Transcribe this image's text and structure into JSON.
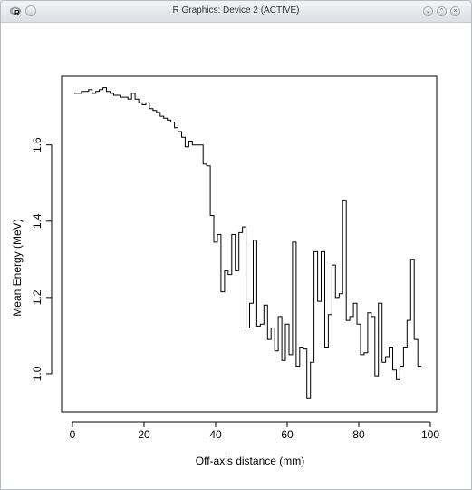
{
  "window": {
    "title": "R Graphics: Device 2 (ACTIVE)"
  },
  "chart_data": {
    "type": "line",
    "xlabel": "Off-axis distance (mm)",
    "ylabel": "Mean Energy (MeV)",
    "xlim": [
      0,
      100
    ],
    "ylim": [
      0.9,
      1.78
    ],
    "x_ticks": [
      0,
      20,
      40,
      60,
      80,
      100
    ],
    "y_ticks": [
      1.0,
      1.2,
      1.4,
      1.6
    ],
    "step_width": 1,
    "x": [
      1,
      2,
      3,
      4,
      5,
      6,
      7,
      8,
      9,
      10,
      11,
      12,
      13,
      14,
      15,
      16,
      17,
      18,
      19,
      20,
      21,
      22,
      23,
      24,
      25,
      26,
      27,
      28,
      29,
      30,
      31,
      32,
      33,
      34,
      35,
      36,
      37,
      38,
      39,
      40,
      41,
      42,
      43,
      44,
      45,
      46,
      47,
      48,
      49,
      50,
      51,
      52,
      53,
      54,
      55,
      56,
      57,
      58,
      59,
      60,
      61,
      62,
      63,
      64,
      65,
      66,
      67,
      68,
      69,
      70,
      71,
      72,
      73,
      74,
      75,
      76,
      77,
      78,
      79,
      80,
      81,
      82,
      83,
      84,
      85,
      86,
      87,
      88,
      89,
      90,
      91,
      92,
      93,
      94,
      95,
      96,
      97
    ],
    "y": [
      1.735,
      1.735,
      1.74,
      1.74,
      1.745,
      1.735,
      1.74,
      1.745,
      1.75,
      1.74,
      1.735,
      1.73,
      1.73,
      1.725,
      1.725,
      1.72,
      1.735,
      1.72,
      1.71,
      1.705,
      1.71,
      1.695,
      1.69,
      1.685,
      1.675,
      1.67,
      1.665,
      1.66,
      1.645,
      1.635,
      1.62,
      1.595,
      1.61,
      1.6,
      1.6,
      1.6,
      1.55,
      1.545,
      1.415,
      1.345,
      1.365,
      1.215,
      1.27,
      1.26,
      1.365,
      1.27,
      1.37,
      1.385,
      1.12,
      1.185,
      1.35,
      1.125,
      1.13,
      1.18,
      1.09,
      1.12,
      1.06,
      1.15,
      1.035,
      1.13,
      1.05,
      1.345,
      1.02,
      1.07,
      1.065,
      0.935,
      1.03,
      1.32,
      1.19,
      1.32,
      1.07,
      1.155,
      1.285,
      1.2,
      1.21,
      1.455,
      1.14,
      1.15,
      1.185,
      1.13,
      1.05,
      1.055,
      1.16,
      1.15,
      0.995,
      1.185,
      1.03,
      1.045,
      1.07,
      1.01,
      0.985,
      1.02,
      1.07,
      1.14,
      1.3,
      1.09,
      1.02
    ]
  }
}
